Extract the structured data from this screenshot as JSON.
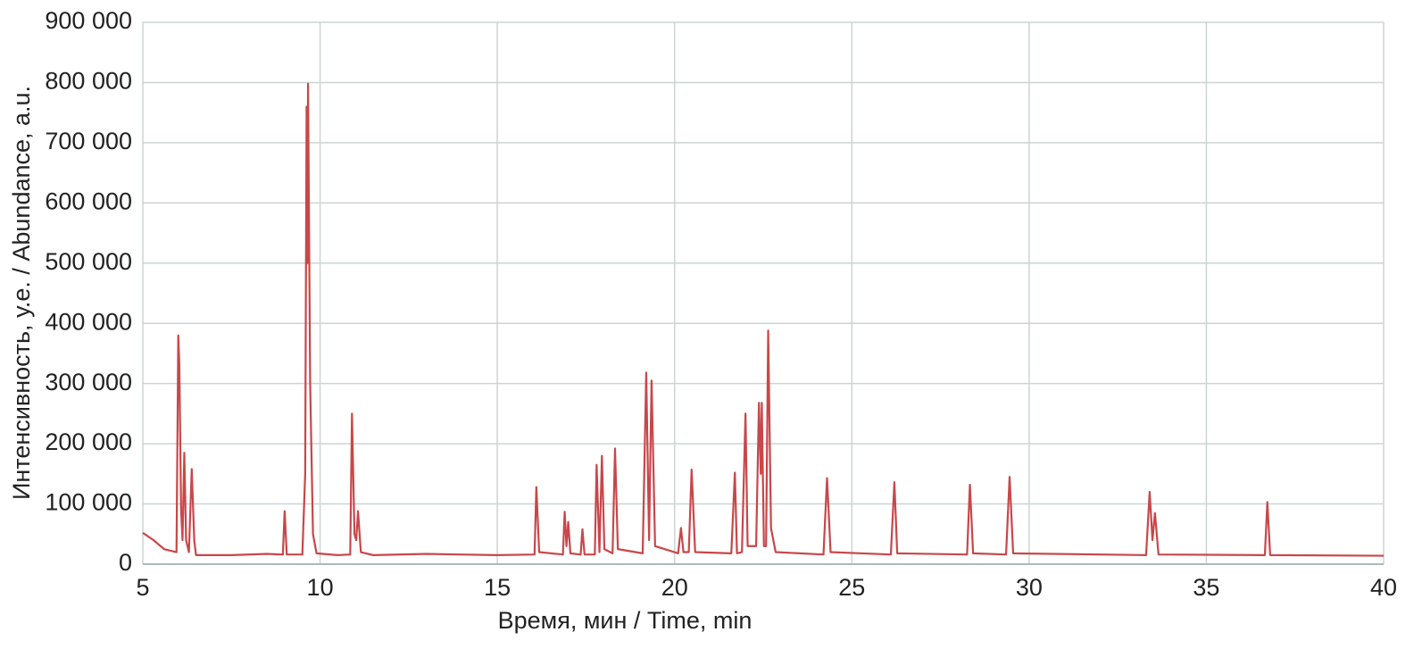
{
  "chart_data": {
    "type": "line",
    "xlabel": "Время,  мин  /  Time,  min",
    "ylabel": "Интенсивность,  у.е.  /  Abundance,  a.u.",
    "color": "#c8474a",
    "grid": true,
    "xlim": [
      5,
      40
    ],
    "xticks": [
      5,
      10,
      15,
      20,
      25,
      30,
      35,
      40
    ],
    "ylim": [
      0,
      900000
    ],
    "yticks": [
      0,
      {
        "value": 100000,
        "label": "100 000"
      },
      {
        "value": 200000,
        "label": "200 000"
      },
      {
        "value": 300000,
        "label": "300 000"
      },
      {
        "value": 400000,
        "label": "400 000"
      },
      {
        "value": 500000,
        "label": "500 000"
      },
      {
        "value": 600000,
        "label": "600 000"
      },
      {
        "value": 700000,
        "label": "700 000"
      },
      {
        "value": 800000,
        "label": "800 000"
      },
      {
        "value": 900000,
        "label": "900 000"
      }
    ],
    "x": [
      5,
      5.3,
      5.6,
      5.95,
      6.0,
      6.03,
      6.08,
      6.12,
      6.17,
      6.22,
      6.3,
      6.38,
      6.45,
      6.5,
      7.5,
      8.5,
      8.95,
      9.0,
      9.06,
      9.5,
      9.58,
      9.62,
      9.64,
      9.66,
      9.72,
      9.8,
      9.9,
      10.5,
      10.85,
      10.9,
      10.97,
      11.02,
      11.07,
      11.15,
      11.5,
      13,
      15,
      16.05,
      16.1,
      16.18,
      16.85,
      16.9,
      16.95,
      17.0,
      17.06,
      17.35,
      17.4,
      17.46,
      17.75,
      17.8,
      17.88,
      17.95,
      18.02,
      18.25,
      18.32,
      18.4,
      19.1,
      19.2,
      19.28,
      19.35,
      19.45,
      20.1,
      20.18,
      20.25,
      20.4,
      20.48,
      20.58,
      21.6,
      21.7,
      21.76,
      21.9,
      22.0,
      22.06,
      22.3,
      22.38,
      22.43,
      22.46,
      22.52,
      22.58,
      22.64,
      22.72,
      22.85,
      24.2,
      24.3,
      24.4,
      26.1,
      26.2,
      26.28,
      28.25,
      28.33,
      28.42,
      29.35,
      29.45,
      29.55,
      33.3,
      33.4,
      33.48,
      33.55,
      33.65,
      36.65,
      36.72,
      36.8,
      40
    ],
    "values": [
      52000,
      40000,
      25000,
      20000,
      380000,
      330000,
      90000,
      40000,
      185000,
      40000,
      20000,
      158000,
      40000,
      15000,
      15000,
      17000,
      16000,
      88000,
      16000,
      16000,
      150000,
      760000,
      500000,
      798000,
      300000,
      50000,
      18000,
      15000,
      16000,
      250000,
      50000,
      40000,
      88000,
      20000,
      15000,
      17000,
      15000,
      16000,
      128000,
      20000,
      16000,
      87000,
      30000,
      70000,
      18000,
      16000,
      58000,
      16000,
      16000,
      165000,
      20000,
      180000,
      25000,
      18000,
      192000,
      25000,
      18000,
      318000,
      40000,
      305000,
      30000,
      18000,
      60000,
      20000,
      20000,
      157000,
      20000,
      18000,
      152000,
      18000,
      20000,
      250000,
      30000,
      30000,
      268000,
      150000,
      268000,
      30000,
      30000,
      388000,
      60000,
      20000,
      16000,
      143000,
      20000,
      16000,
      136000,
      18000,
      16000,
      132000,
      18000,
      16000,
      145000,
      18000,
      15000,
      120000,
      40000,
      85000,
      16000,
      15000,
      103000,
      15000,
      14000
    ]
  }
}
